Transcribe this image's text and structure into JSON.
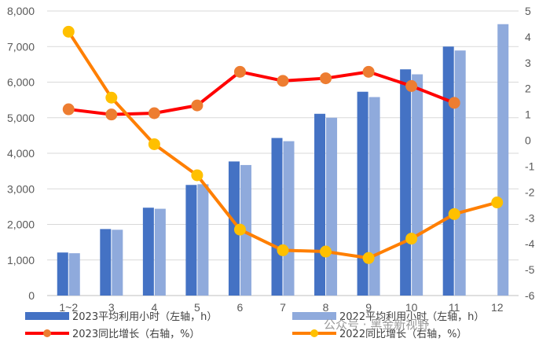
{
  "chart_data": {
    "type": "bar",
    "categories": [
      "1~2",
      "3",
      "4",
      "5",
      "6",
      "7",
      "8",
      "9",
      "10",
      "11",
      "12"
    ],
    "y_left_ticks": [
      "0",
      "1,000",
      "2,000",
      "3,000",
      "4,000",
      "5,000",
      "6,000",
      "7,000",
      "8,000"
    ],
    "y_right_ticks": [
      "-6",
      "-5",
      "-4",
      "-3",
      "-2",
      "-1",
      "0",
      "1",
      "2",
      "3",
      "4",
      "5"
    ],
    "ylim_left": [
      0,
      8000
    ],
    "ylim_right": [
      -6,
      5
    ],
    "series": [
      {
        "name": "2023平均利用小时（左轴，h）",
        "type": "bar",
        "axis": "left",
        "color": "#4472c4",
        "values": [
          1210,
          1870,
          2470,
          3110,
          3770,
          4430,
          5110,
          5730,
          6360,
          7000,
          null
        ]
      },
      {
        "name": "2022平均利用小时（左轴，h）",
        "type": "bar",
        "axis": "left",
        "color": "#8faadc",
        "values": [
          1190,
          1850,
          2440,
          3130,
          3670,
          4340,
          5000,
          5580,
          6220,
          6890,
          7630
        ]
      },
      {
        "name": "2023同比增长（右轴，%）",
        "type": "line",
        "axis": "right",
        "color": "#ff0000",
        "marker_color": "#ed7d31",
        "values": [
          1.2,
          1.0,
          1.05,
          1.35,
          2.65,
          2.3,
          2.4,
          2.65,
          2.1,
          1.45,
          null
        ]
      },
      {
        "name": "2022同比增长（右轴，%）",
        "type": "line",
        "axis": "right",
        "color": "#ff7f00",
        "marker_color": "#ffc000",
        "values": [
          4.2,
          1.65,
          -0.15,
          -1.35,
          -3.45,
          -4.25,
          -4.3,
          -4.55,
          -3.8,
          -2.85,
          -2.4
        ]
      }
    ],
    "grid": true,
    "legend_position": "bottom"
  },
  "watermark": "公众号 · 黑金新视野"
}
